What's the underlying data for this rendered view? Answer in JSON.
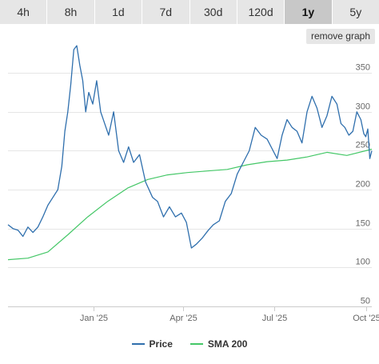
{
  "tabs": [
    {
      "label": "4h"
    },
    {
      "label": "8h"
    },
    {
      "label": "1d"
    },
    {
      "label": "7d"
    },
    {
      "label": "30d"
    },
    {
      "label": "120d"
    },
    {
      "label": "1y",
      "active": true
    },
    {
      "label": "5y"
    }
  ],
  "remove_graph_label": "remove graph",
  "colors": {
    "price": "#2f6fad",
    "sma": "#44c767",
    "grid": "#e6e6e6",
    "axis": "#cccccc"
  },
  "chart_data": {
    "type": "line",
    "ylim": [
      50,
      380
    ],
    "yticks": [
      50,
      100,
      150,
      200,
      250,
      300,
      350
    ],
    "xlim": [
      "2024-10-07",
      "2025-10-07"
    ],
    "xticks": [
      {
        "date": "2025-01-01",
        "label": "Jan '25"
      },
      {
        "date": "2025-04-01",
        "label": "Apr '25"
      },
      {
        "date": "2025-07-01",
        "label": "Jul '25"
      },
      {
        "date": "2025-10-01",
        "label": "Oct '25"
      }
    ],
    "series": [
      {
        "name": "Price",
        "x": [
          "2024-10-07",
          "2024-10-12",
          "2024-10-17",
          "2024-10-22",
          "2024-10-27",
          "2024-11-01",
          "2024-11-06",
          "2024-11-11",
          "2024-11-16",
          "2024-11-21",
          "2024-11-26",
          "2024-11-30",
          "2024-12-03",
          "2024-12-06",
          "2024-12-09",
          "2024-12-12",
          "2024-12-15",
          "2024-12-18",
          "2024-12-21",
          "2024-12-24",
          "2024-12-27",
          "2024-12-31",
          "2025-01-04",
          "2025-01-08",
          "2025-01-12",
          "2025-01-16",
          "2025-01-21",
          "2025-01-26",
          "2025-01-31",
          "2025-02-05",
          "2025-02-10",
          "2025-02-16",
          "2025-02-22",
          "2025-03-01",
          "2025-03-06",
          "2025-03-12",
          "2025-03-18",
          "2025-03-24",
          "2025-03-30",
          "2025-04-04",
          "2025-04-09",
          "2025-04-14",
          "2025-04-20",
          "2025-04-26",
          "2025-05-01",
          "2025-05-07",
          "2025-05-13",
          "2025-05-19",
          "2025-05-25",
          "2025-05-31",
          "2025-06-06",
          "2025-06-12",
          "2025-06-18",
          "2025-06-24",
          "2025-06-30",
          "2025-07-04",
          "2025-07-09",
          "2025-07-14",
          "2025-07-19",
          "2025-07-24",
          "2025-07-29",
          "2025-08-03",
          "2025-08-08",
          "2025-08-13",
          "2025-08-18",
          "2025-08-23",
          "2025-08-28",
          "2025-09-02",
          "2025-09-06",
          "2025-09-10",
          "2025-09-14",
          "2025-09-18",
          "2025-09-22",
          "2025-09-26",
          "2025-09-29",
          "2025-10-01",
          "2025-10-03",
          "2025-10-05",
          "2025-10-07"
        ],
        "values": [
          155,
          150,
          148,
          140,
          152,
          145,
          152,
          165,
          180,
          190,
          200,
          230,
          275,
          300,
          335,
          380,
          385,
          360,
          340,
          300,
          325,
          310,
          340,
          300,
          285,
          270,
          300,
          250,
          235,
          255,
          235,
          245,
          210,
          190,
          185,
          165,
          178,
          165,
          170,
          158,
          125,
          130,
          138,
          148,
          155,
          160,
          185,
          195,
          220,
          235,
          250,
          280,
          270,
          265,
          250,
          240,
          270,
          290,
          280,
          275,
          260,
          300,
          320,
          305,
          280,
          295,
          320,
          310,
          285,
          280,
          270,
          275,
          300,
          290,
          272,
          268,
          278,
          240,
          250
        ]
      },
      {
        "name": "SMA 200",
        "x": [
          "2024-10-07",
          "2024-10-27",
          "2024-11-16",
          "2024-12-06",
          "2024-12-26",
          "2025-01-15",
          "2025-02-04",
          "2025-02-24",
          "2025-03-16",
          "2025-04-05",
          "2025-04-25",
          "2025-05-15",
          "2025-06-04",
          "2025-06-24",
          "2025-07-14",
          "2025-08-03",
          "2025-08-23",
          "2025-09-12",
          "2025-10-07"
        ],
        "values": [
          110,
          112,
          120,
          142,
          165,
          185,
          202,
          213,
          219,
          222,
          224,
          226,
          232,
          236,
          238,
          242,
          248,
          244,
          252
        ]
      }
    ]
  }
}
